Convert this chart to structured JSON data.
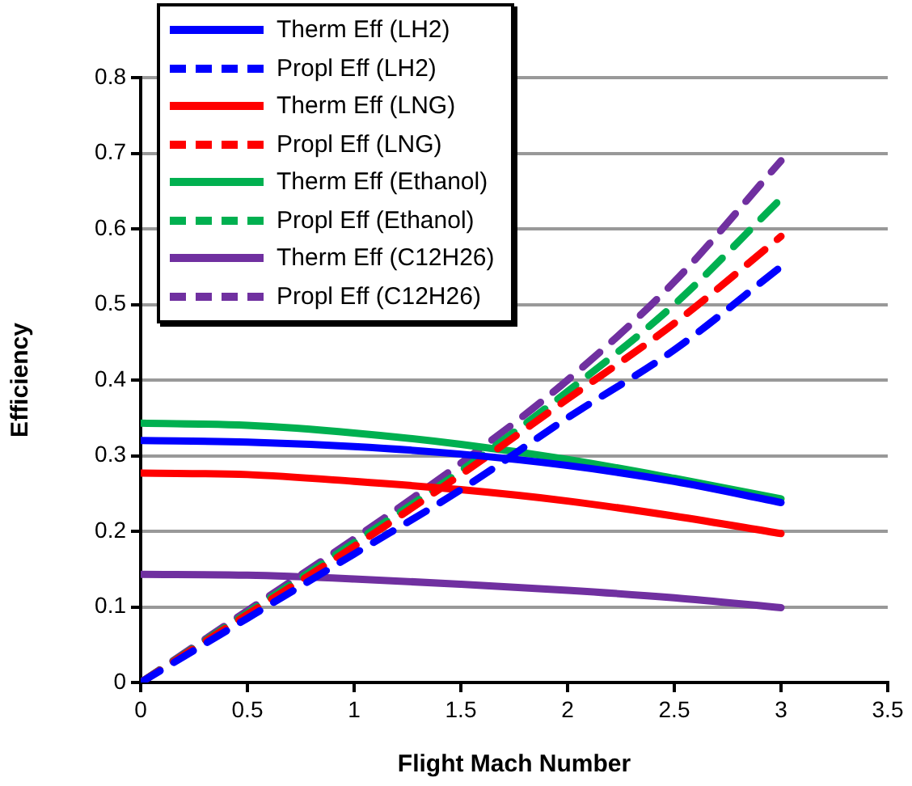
{
  "chart_data": {
    "type": "line",
    "xlabel": "Flight Mach Number",
    "ylabel": "Efficiency",
    "x": [
      0,
      0.5,
      1,
      1.5,
      2,
      2.5,
      3
    ],
    "xlim": [
      0,
      3.5
    ],
    "xticks": [
      0,
      0.5,
      1,
      1.5,
      2,
      2.5,
      3,
      3.5
    ],
    "ylim": [
      0,
      0.8
    ],
    "yticks": [
      0,
      0.1,
      0.2,
      0.3,
      0.4,
      0.5,
      0.6,
      0.7,
      0.8
    ],
    "grid": "y",
    "legend": "top left",
    "marker": "none",
    "series": [
      {
        "name": "Therm Eff (LH2)",
        "color": "#0000ff",
        "line_style": "solid",
        "values": [
          0.32,
          0.318,
          0.312,
          0.302,
          0.287,
          0.266,
          0.238
        ]
      },
      {
        "name": "Propl Eff (LH2)",
        "color": "#0000ff",
        "line_style": "dashed",
        "values": [
          0,
          0.085,
          0.17,
          0.255,
          0.35,
          0.44,
          0.55
        ]
      },
      {
        "name": "Therm Eff (LNG)",
        "color": "#ff0000",
        "line_style": "solid",
        "values": [
          0.277,
          0.275,
          0.266,
          0.255,
          0.24,
          0.22,
          0.197
        ]
      },
      {
        "name": "Propl Eff (LNG)",
        "color": "#ff0000",
        "line_style": "dashed",
        "values": [
          0,
          0.09,
          0.18,
          0.275,
          0.375,
          0.475,
          0.59
        ]
      },
      {
        "name": "Therm Eff (Ethanol)",
        "color": "#00b050",
        "line_style": "solid",
        "values": [
          0.343,
          0.34,
          0.33,
          0.315,
          0.295,
          0.27,
          0.243
        ]
      },
      {
        "name": "Propl Eff (Ethanol)",
        "color": "#00b050",
        "line_style": "dashed",
        "values": [
          0,
          0.092,
          0.185,
          0.28,
          0.385,
          0.5,
          0.64
        ]
      },
      {
        "name": "Therm Eff (C12H26)",
        "color": "#7030a0",
        "line_style": "solid",
        "values": [
          0.143,
          0.142,
          0.137,
          0.13,
          0.122,
          0.112,
          0.099
        ]
      },
      {
        "name": "Propl Eff (C12H26)",
        "color": "#7030a0",
        "line_style": "dashed",
        "values": [
          0,
          0.095,
          0.19,
          0.29,
          0.4,
          0.53,
          0.69
        ]
      }
    ]
  }
}
